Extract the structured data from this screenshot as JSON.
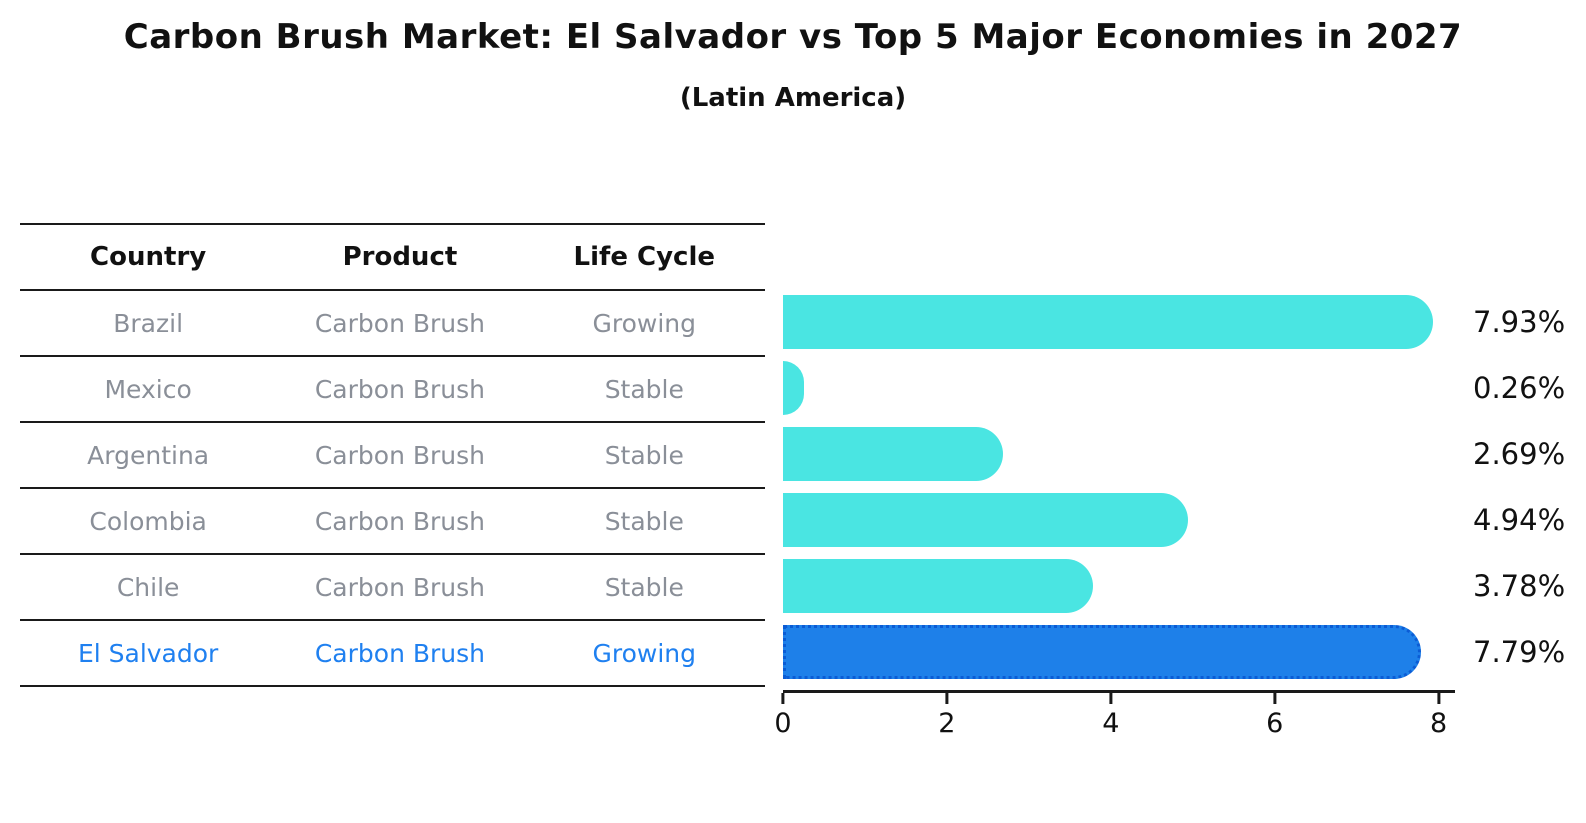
{
  "header": {
    "title": "Carbon Brush Market: El Salvador vs Top 5 Major Economies in 2027",
    "subtitle": "(Latin America)"
  },
  "table": {
    "headers": [
      "Country",
      "Product",
      "Life Cycle"
    ],
    "rows": [
      {
        "country": "Brazil",
        "product": "Carbon Brush",
        "life_cycle": "Growing",
        "highlight": false
      },
      {
        "country": "Mexico",
        "product": "Carbon Brush",
        "life_cycle": "Stable",
        "highlight": false
      },
      {
        "country": "Argentina",
        "product": "Carbon Brush",
        "life_cycle": "Stable",
        "highlight": false
      },
      {
        "country": "Colombia",
        "product": "Carbon Brush",
        "life_cycle": "Stable",
        "highlight": false
      },
      {
        "country": "Chile",
        "product": "Carbon Brush",
        "life_cycle": "Stable",
        "highlight": false
      },
      {
        "country": "El Salvador",
        "product": "Carbon Brush",
        "life_cycle": "Growing",
        "highlight": true
      }
    ]
  },
  "chart_data": {
    "type": "bar",
    "orientation": "horizontal",
    "categories": [
      "Brazil",
      "Mexico",
      "Argentina",
      "Colombia",
      "Chile",
      "El Salvador"
    ],
    "values": [
      7.93,
      0.26,
      2.69,
      4.94,
      3.78,
      7.79
    ],
    "value_labels": [
      "7.93%",
      "0.26%",
      "2.69%",
      "4.94%",
      "3.78%",
      "7.79%"
    ],
    "title": "Carbon Brush Market: El Salvador vs Top 5 Major Economies in 2027",
    "subtitle": "(Latin America)",
    "xlabel": "",
    "ylabel": "",
    "xlim": [
      0,
      8.2
    ],
    "xticks": [
      "0",
      "2",
      "4",
      "6",
      "8"
    ],
    "xtick_values": [
      0,
      2,
      4,
      6,
      8
    ],
    "grid": false,
    "legend": "none",
    "highlight_index": 5
  },
  "colors": {
    "bar_cyan": "#4ae5e2",
    "bar_blue": "#1e80e9",
    "bar_blue_border": "#0b5cd5",
    "highlight_text": "#1f80f0",
    "row_text": "#8a8f98",
    "axis_line": "#1a1a1a"
  }
}
